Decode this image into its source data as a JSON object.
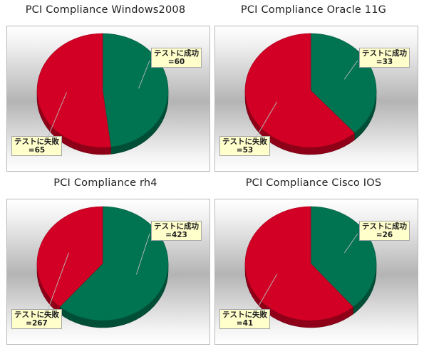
{
  "chart_data": [
    {
      "type": "pie",
      "title": "PCI Compliance Windows2008",
      "categories": [
        "テストに成功",
        "テストに失敗"
      ],
      "values": [
        60,
        65
      ],
      "data_labels": [
        "テストに成功",
        "テストに失敗"
      ],
      "value_labels": [
        "=60",
        "=65"
      ],
      "colors": [
        "#007350",
        "#d10024"
      ]
    },
    {
      "type": "pie",
      "title": "PCI Compliance Oracle 11G",
      "categories": [
        "テストに成功",
        "テストに失敗"
      ],
      "values": [
        33,
        53
      ],
      "data_labels": [
        "テストに成功",
        "テストに失敗"
      ],
      "value_labels": [
        "=33",
        "=53"
      ],
      "colors": [
        "#007350",
        "#d10024"
      ]
    },
    {
      "type": "pie",
      "title": "PCI Compliance rh4",
      "categories": [
        "テストに成功",
        "テストに失敗"
      ],
      "values": [
        423,
        267
      ],
      "data_labels": [
        "テストに成功",
        "テストに失敗"
      ],
      "value_labels": [
        "=423",
        "=267"
      ],
      "colors": [
        "#007350",
        "#d10024"
      ]
    },
    {
      "type": "pie",
      "title": "PCI Compliance Cisco IOS",
      "categories": [
        "テストに成功",
        "テストに失敗"
      ],
      "values": [
        26,
        41
      ],
      "data_labels": [
        "テストに成功",
        "テストに失敗"
      ],
      "value_labels": [
        "=26",
        "=41"
      ],
      "colors": [
        "#007350",
        "#d10024"
      ]
    }
  ]
}
